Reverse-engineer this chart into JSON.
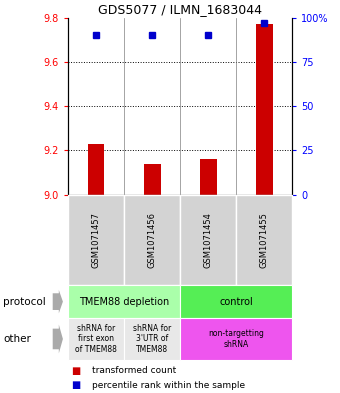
{
  "title": "GDS5077 / ILMN_1683044",
  "samples": [
    "GSM1071457",
    "GSM1071456",
    "GSM1071454",
    "GSM1071455"
  ],
  "transformed_counts": [
    9.23,
    9.14,
    9.16,
    9.77
  ],
  "percentile_ranks": [
    90,
    90,
    90,
    97
  ],
  "ylim_left": [
    9.0,
    9.8
  ],
  "ylim_right": [
    0,
    100
  ],
  "yticks_left": [
    9.0,
    9.2,
    9.4,
    9.6,
    9.8
  ],
  "yticks_right": [
    0,
    25,
    50,
    75,
    100
  ],
  "ytick_labels_right": [
    "0",
    "25",
    "50",
    "75",
    "100%"
  ],
  "bar_color": "#cc0000",
  "dot_color": "#0000cc",
  "protocol_labels": [
    "TMEM88 depletion",
    "control"
  ],
  "protocol_colors": [
    "#aaffaa",
    "#55ee55"
  ],
  "other_labels": [
    "shRNA for\nfirst exon\nof TMEM88",
    "shRNA for\n3'UTR of\nTMEM88",
    "non-targetting\nshRNA"
  ],
  "other_colors": [
    "#e8e8e8",
    "#e8e8e8",
    "#ee55ee"
  ],
  "legend_red": "transformed count",
  "legend_blue": "percentile rank within the sample",
  "sample_box_color": "#d3d3d3",
  "background_color": "#ffffff"
}
